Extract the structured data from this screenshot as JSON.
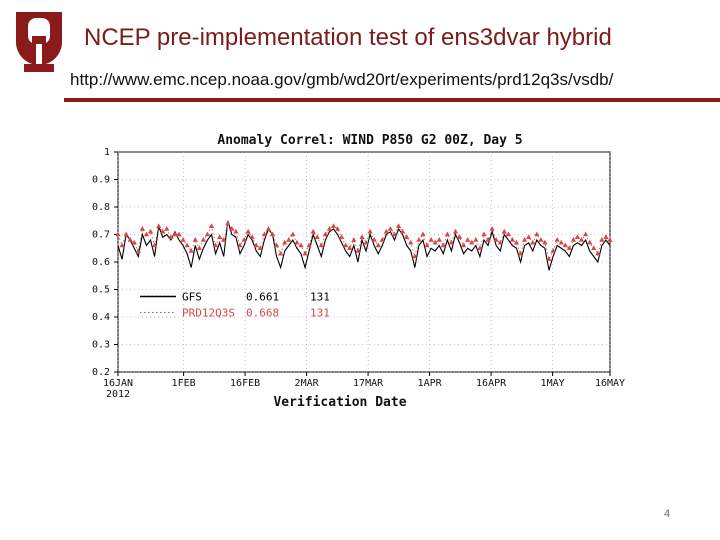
{
  "slide": {
    "title": "NCEP pre-implementation test of ens3dvar hybrid",
    "url": "http://www.emc.ncep.noaa.gov/gmb/wd20rt/experiments/prd12q3s/vsdb/",
    "page_number": "4",
    "accent_color": "#8b1a1a"
  },
  "chart_data": {
    "type": "line",
    "title": "Anomaly Correl: WIND P850 G2 00Z, Day 5",
    "xlabel": "Verification Date",
    "ylabel": "",
    "ylim": [
      0.2,
      1.0
    ],
    "xlim": [
      0,
      120
    ],
    "y_ticks": [
      "1",
      "0.9",
      "0.8",
      "0.7",
      "0.6",
      "0.5",
      "0.4",
      "0.3",
      "0.2"
    ],
    "x_ticks": [
      {
        "label": "16JAN",
        "sublabel": "2012",
        "x": 0
      },
      {
        "label": "1FEB",
        "x": 16
      },
      {
        "label": "16FEB",
        "x": 31
      },
      {
        "label": "2MAR",
        "x": 46
      },
      {
        "label": "17MAR",
        "x": 61
      },
      {
        "label": "1APR",
        "x": 76
      },
      {
        "label": "16APR",
        "x": 91
      },
      {
        "label": "1MAY",
        "x": 106
      },
      {
        "label": "16MAY",
        "x": 121
      }
    ],
    "legend": [
      {
        "name": "GFS",
        "score": "0.661",
        "count": "131",
        "color": "#000000"
      },
      {
        "name": "PRD12Q3S",
        "score": "0.668",
        "count": "131",
        "color": "#d84848"
      }
    ],
    "series": [
      {
        "name": "GFS",
        "color": "#000000",
        "values": [
          0.66,
          0.61,
          0.7,
          0.68,
          0.65,
          0.62,
          0.7,
          0.66,
          0.68,
          0.62,
          0.73,
          0.69,
          0.7,
          0.68,
          0.71,
          0.68,
          0.66,
          0.63,
          0.58,
          0.66,
          0.61,
          0.65,
          0.68,
          0.7,
          0.63,
          0.67,
          0.62,
          0.75,
          0.7,
          0.69,
          0.63,
          0.66,
          0.7,
          0.68,
          0.64,
          0.62,
          0.68,
          0.72,
          0.7,
          0.62,
          0.58,
          0.64,
          0.66,
          0.68,
          0.65,
          0.63,
          0.58,
          0.64,
          0.7,
          0.66,
          0.62,
          0.68,
          0.71,
          0.72,
          0.7,
          0.67,
          0.64,
          0.62,
          0.66,
          0.6,
          0.68,
          0.64,
          0.7,
          0.66,
          0.63,
          0.66,
          0.7,
          0.71,
          0.68,
          0.72,
          0.7,
          0.66,
          0.64,
          0.58,
          0.66,
          0.68,
          0.62,
          0.65,
          0.64,
          0.66,
          0.63,
          0.68,
          0.64,
          0.7,
          0.67,
          0.63,
          0.65,
          0.64,
          0.66,
          0.62,
          0.68,
          0.66,
          0.71,
          0.66,
          0.64,
          0.7,
          0.68,
          0.66,
          0.65,
          0.6,
          0.66,
          0.67,
          0.64,
          0.68,
          0.66,
          0.65,
          0.57,
          0.62,
          0.66,
          0.65,
          0.64,
          0.62,
          0.66,
          0.67,
          0.66,
          0.68,
          0.64,
          0.62,
          0.6,
          0.66,
          0.68,
          0.66
        ]
      },
      {
        "name": "PRD12Q3S",
        "color": "#d84848",
        "values": [
          0.7,
          0.66,
          0.7,
          0.68,
          0.67,
          0.64,
          0.72,
          0.7,
          0.71,
          0.66,
          0.73,
          0.71,
          0.72,
          0.69,
          0.7,
          0.7,
          0.68,
          0.66,
          0.64,
          0.68,
          0.65,
          0.68,
          0.7,
          0.73,
          0.66,
          0.69,
          0.68,
          0.74,
          0.72,
          0.71,
          0.66,
          0.68,
          0.71,
          0.69,
          0.66,
          0.65,
          0.7,
          0.72,
          0.7,
          0.66,
          0.63,
          0.67,
          0.68,
          0.7,
          0.67,
          0.66,
          0.63,
          0.66,
          0.71,
          0.69,
          0.66,
          0.7,
          0.72,
          0.73,
          0.72,
          0.69,
          0.66,
          0.65,
          0.68,
          0.64,
          0.69,
          0.67,
          0.71,
          0.68,
          0.66,
          0.68,
          0.71,
          0.72,
          0.7,
          0.73,
          0.71,
          0.69,
          0.67,
          0.62,
          0.68,
          0.7,
          0.66,
          0.68,
          0.67,
          0.68,
          0.66,
          0.7,
          0.67,
          0.71,
          0.69,
          0.66,
          0.68,
          0.67,
          0.68,
          0.65,
          0.7,
          0.68,
          0.72,
          0.68,
          0.67,
          0.71,
          0.7,
          0.68,
          0.67,
          0.63,
          0.68,
          0.69,
          0.67,
          0.7,
          0.68,
          0.67,
          0.61,
          0.64,
          0.68,
          0.67,
          0.66,
          0.65,
          0.68,
          0.69,
          0.68,
          0.7,
          0.67,
          0.65,
          0.63,
          0.68,
          0.69,
          0.68
        ]
      }
    ]
  }
}
